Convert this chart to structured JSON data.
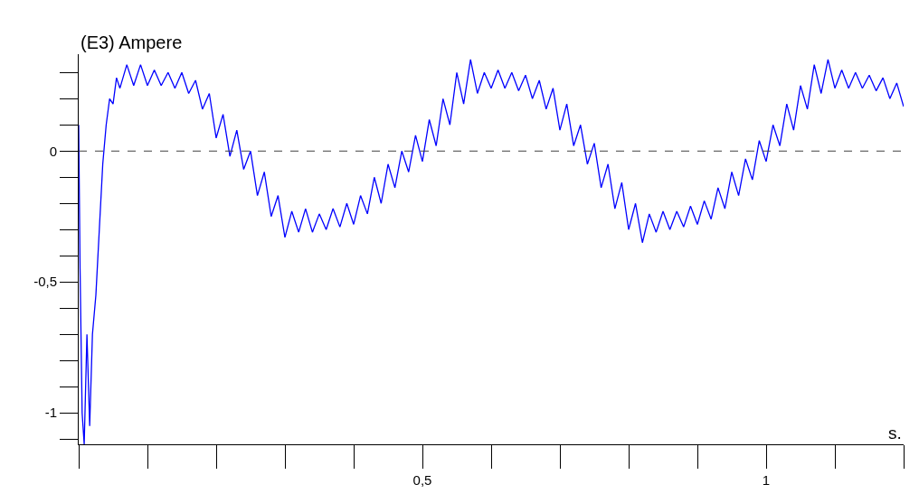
{
  "chart_data": {
    "type": "line",
    "ylabel": "(E3) Ampere",
    "xlabel": "s.",
    "xlim": [
      0,
      1.2
    ],
    "ylim": [
      -1.12,
      0.37
    ],
    "xticks": [
      {
        "value": 0.5,
        "label": "0,5"
      },
      1
    ],
    "yticks": [
      0,
      {
        "value": -0.5,
        "label": "-0,5"
      },
      -1
    ],
    "ref_lines": [
      {
        "axis": "y",
        "value": 0,
        "label": null,
        "color": "#404040",
        "line_style": "dashed"
      }
    ],
    "grid": false,
    "marker": "none",
    "line_style": "solid",
    "series": [
      {
        "color": "#0000ff",
        "x": [
          0,
          0.002,
          0.005,
          0.008,
          0.012,
          0.016,
          0.02,
          0.025,
          0.03,
          0.035,
          0.04,
          0.045,
          0.05,
          0.055,
          0.06,
          0.07,
          0.08,
          0.09,
          0.1,
          0.11,
          0.12,
          0.13,
          0.14,
          0.15,
          0.16,
          0.17,
          0.18,
          0.19,
          0.2,
          0.21,
          0.22,
          0.23,
          0.24,
          0.25,
          0.26,
          0.27,
          0.28,
          0.29,
          0.3,
          0.31,
          0.32,
          0.33,
          0.34,
          0.35,
          0.36,
          0.37,
          0.38,
          0.39,
          0.4,
          0.41,
          0.42,
          0.43,
          0.44,
          0.45,
          0.46,
          0.47,
          0.48,
          0.49,
          0.5,
          0.51,
          0.52,
          0.53,
          0.54,
          0.55,
          0.56,
          0.57,
          0.58,
          0.59,
          0.6,
          0.61,
          0.62,
          0.63,
          0.64,
          0.65,
          0.66,
          0.67,
          0.68,
          0.69,
          0.7,
          0.71,
          0.72,
          0.73,
          0.74,
          0.75,
          0.76,
          0.77,
          0.78,
          0.79,
          0.8,
          0.81,
          0.82,
          0.83,
          0.84,
          0.85,
          0.86,
          0.87,
          0.88,
          0.89,
          0.9,
          0.91,
          0.92,
          0.93,
          0.94,
          0.95,
          0.96,
          0.97,
          0.98,
          0.99,
          1.0,
          1.01,
          1.02,
          1.03,
          1.04,
          1.05,
          1.06,
          1.07,
          1.08,
          1.09,
          1.1,
          1.11,
          1.12,
          1.13,
          1.14,
          1.15,
          1.16,
          1.17,
          1.18,
          1.19,
          1.2
        ],
        "values": [
          0.1,
          -0.45,
          -1.0,
          -1.12,
          -0.7,
          -1.05,
          -0.7,
          -0.55,
          -0.3,
          -0.05,
          0.1,
          0.2,
          0.18,
          0.28,
          0.24,
          0.33,
          0.25,
          0.33,
          0.25,
          0.31,
          0.25,
          0.3,
          0.24,
          0.3,
          0.22,
          0.27,
          0.16,
          0.22,
          0.05,
          0.14,
          -0.02,
          0.08,
          -0.07,
          0.0,
          -0.17,
          -0.08,
          -0.25,
          -0.17,
          -0.33,
          -0.23,
          -0.31,
          -0.22,
          -0.31,
          -0.24,
          -0.3,
          -0.22,
          -0.29,
          -0.2,
          -0.28,
          -0.17,
          -0.24,
          -0.1,
          -0.2,
          -0.05,
          -0.14,
          0.0,
          -0.08,
          0.06,
          -0.04,
          0.12,
          0.02,
          0.2,
          0.1,
          0.3,
          0.18,
          0.35,
          0.22,
          0.3,
          0.24,
          0.31,
          0.24,
          0.3,
          0.23,
          0.29,
          0.2,
          0.27,
          0.16,
          0.24,
          0.08,
          0.18,
          0.02,
          0.1,
          -0.05,
          0.03,
          -0.14,
          -0.05,
          -0.22,
          -0.12,
          -0.3,
          -0.2,
          -0.35,
          -0.24,
          -0.31,
          -0.23,
          -0.3,
          -0.23,
          -0.29,
          -0.21,
          -0.28,
          -0.19,
          -0.26,
          -0.14,
          -0.22,
          -0.08,
          -0.17,
          -0.03,
          -0.11,
          0.04,
          -0.04,
          0.1,
          0.02,
          0.18,
          0.08,
          0.25,
          0.16,
          0.33,
          0.22,
          0.35,
          0.24,
          0.31,
          0.24,
          0.3,
          0.24,
          0.29,
          0.23,
          0.28,
          0.2,
          0.26,
          0.17
        ]
      }
    ]
  }
}
